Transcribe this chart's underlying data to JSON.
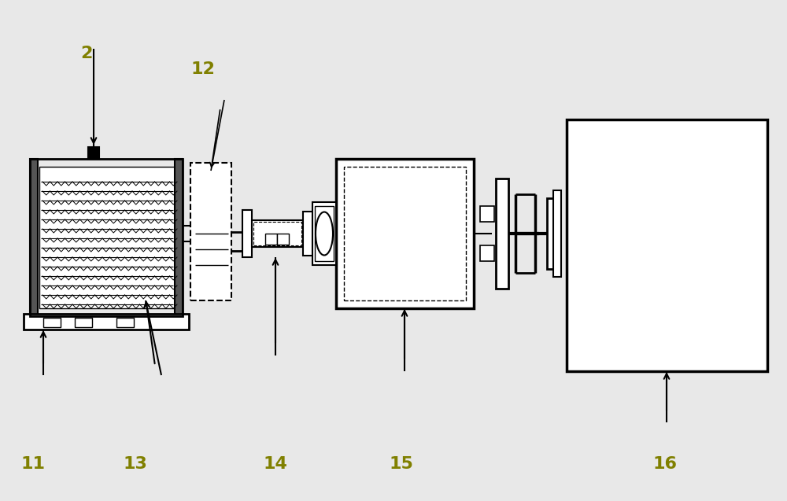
{
  "bg_color": "#e8e8e8",
  "line_color": "#000000",
  "label_color": "#808000",
  "fig_width": 10.0,
  "fig_height": 6.37,
  "label_fontsize": 16
}
